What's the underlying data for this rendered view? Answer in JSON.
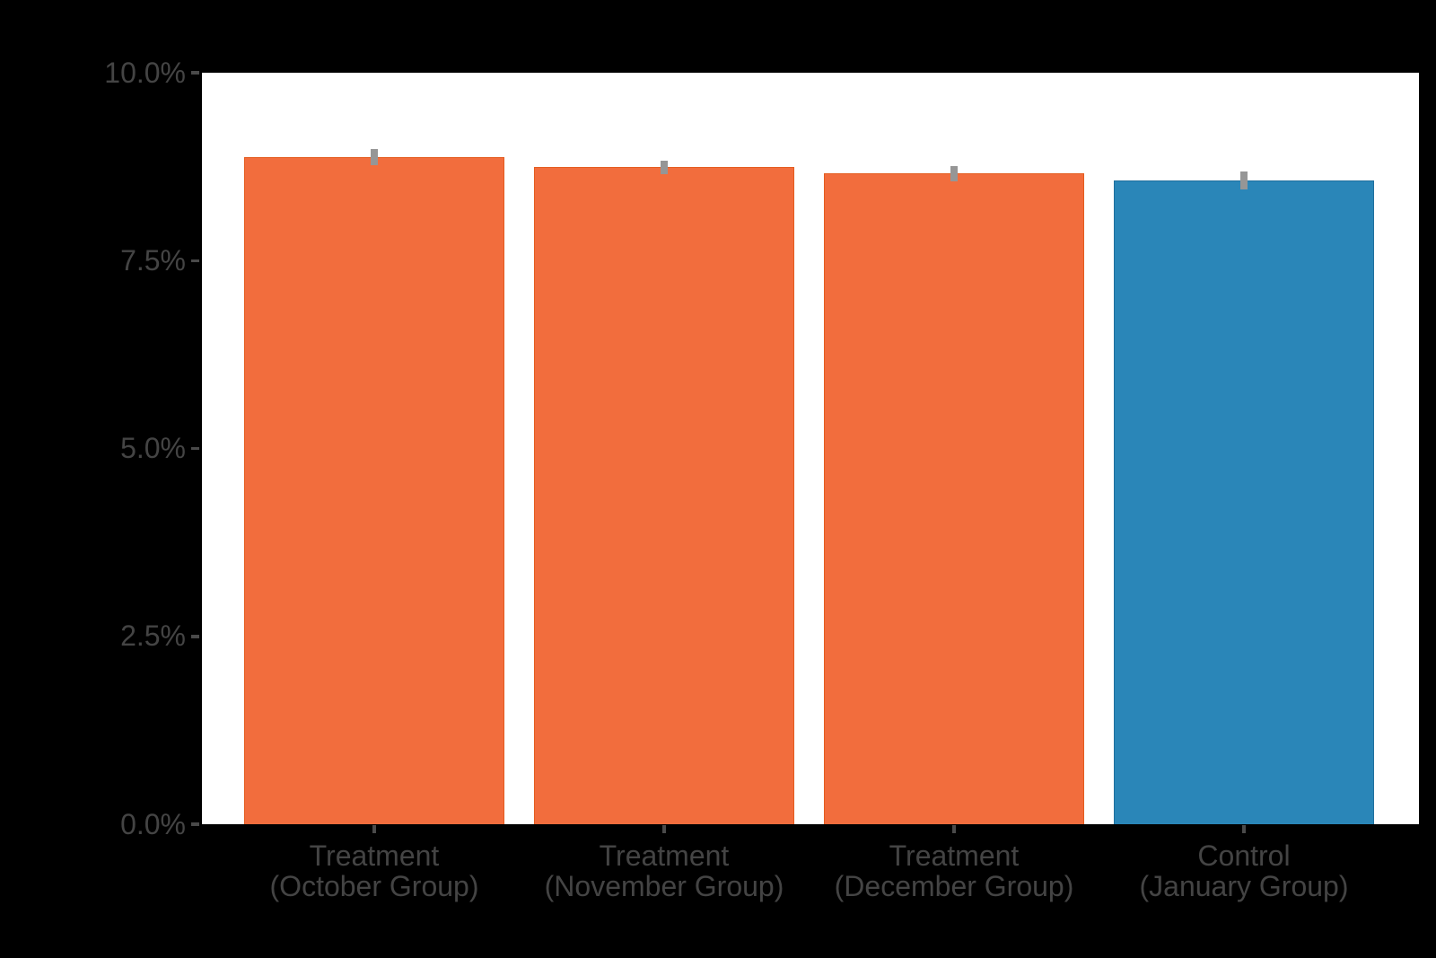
{
  "colors": {
    "background": "#000000",
    "plot_background": "#ffffff",
    "orange_fill": "#f26d3d",
    "orange_edge": "#e45c1f",
    "blue_fill": "#2a86b8",
    "blue_edge": "#1f6f9d",
    "error_bar": "#969696",
    "axis_text": "#444444",
    "tick_mark": "#4a4a4a"
  },
  "chart_data": {
    "type": "bar",
    "title": "",
    "xlabel": "",
    "ylabel": "",
    "categories": [
      "Treatment (October Group)",
      "Treatment (November Group)",
      "Treatment (December Group)",
      "Control (January Group)"
    ],
    "category_label_lines": [
      [
        "Treatment",
        "(October Group)"
      ],
      [
        "Treatment",
        "(November Group)"
      ],
      [
        "Treatment",
        "(December Group)"
      ],
      [
        "Control",
        "(January Group)"
      ]
    ],
    "values": [
      8.88,
      8.74,
      8.66,
      8.57
    ],
    "errors": [
      0.11,
      0.09,
      0.1,
      0.12
    ],
    "series_colors": [
      "orange",
      "orange",
      "orange",
      "blue"
    ],
    "ytick_labels": [
      "0.0%",
      "2.5%",
      "5.0%",
      "7.5%",
      "10.0%"
    ],
    "ytick_values": [
      0,
      2.5,
      5,
      7.5,
      10
    ],
    "ylim": [
      0,
      10
    ],
    "grid": false,
    "legend": null
  }
}
